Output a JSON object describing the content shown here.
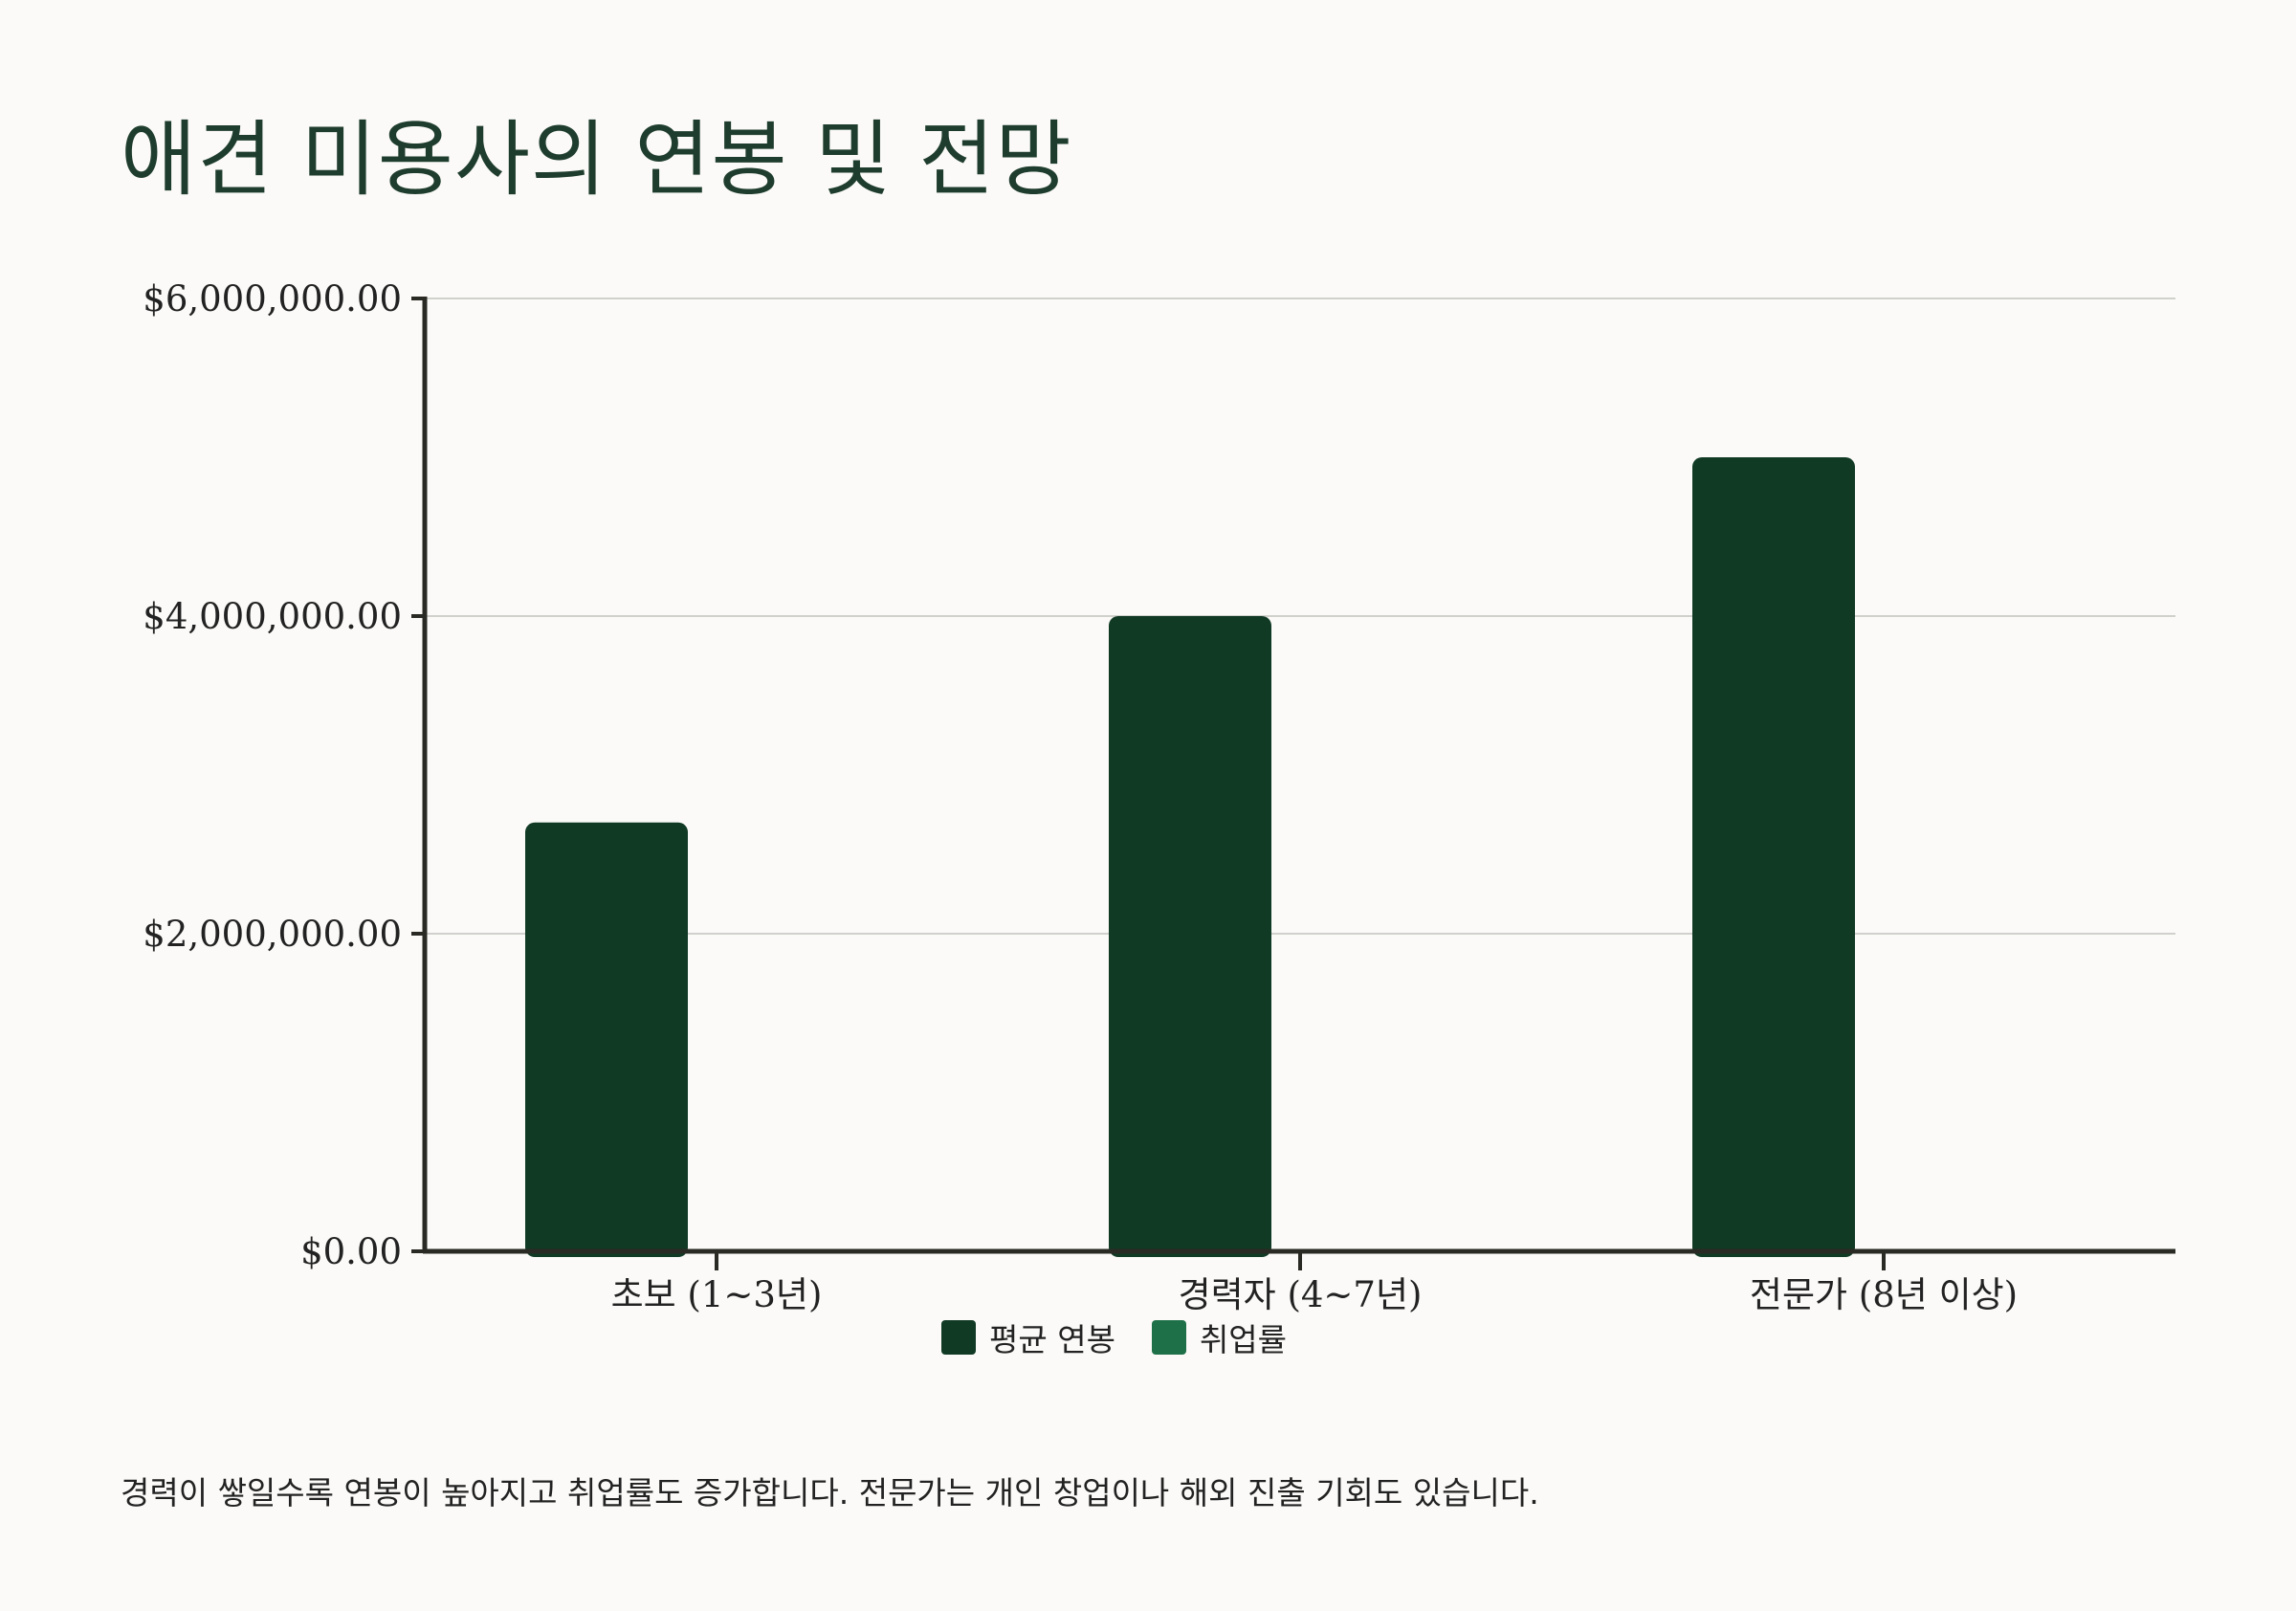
{
  "title": "애견 미용사의 연봉 및 전망",
  "footnote": "경력이 쌓일수록 연봉이 높아지고 취업률도 증가합니다. 전문가는 개인 창업이나 해외 진출 기회도 있습니다.",
  "colors": {
    "salary": "#113a25",
    "employment": "#1e7048",
    "axis": "#2a2a24",
    "grid": "#d0d0cc"
  },
  "legend": {
    "salary_label": "평균 연봉",
    "employment_label": "취업률"
  },
  "chart_data": {
    "type": "bar",
    "categories": [
      "초보 (1~3년)",
      "경력자 (4~7년)",
      "전문가 (8년 이상)"
    ],
    "series": [
      {
        "name": "평균 연봉",
        "values": [
          2700000,
          4000000,
          5000000
        ]
      },
      {
        "name": "취업률",
        "values": [
          0,
          0,
          0
        ]
      }
    ],
    "yticks": [
      "$0.00",
      "$2,000,000.00",
      "$4,000,000.00",
      "$6,000,000.00"
    ],
    "ytick_values": [
      0,
      2000000,
      4000000,
      6000000
    ],
    "ylim": [
      0,
      6000000
    ],
    "grid": true,
    "legend_position": "bottom-center",
    "xlabel": "",
    "ylabel": ""
  }
}
